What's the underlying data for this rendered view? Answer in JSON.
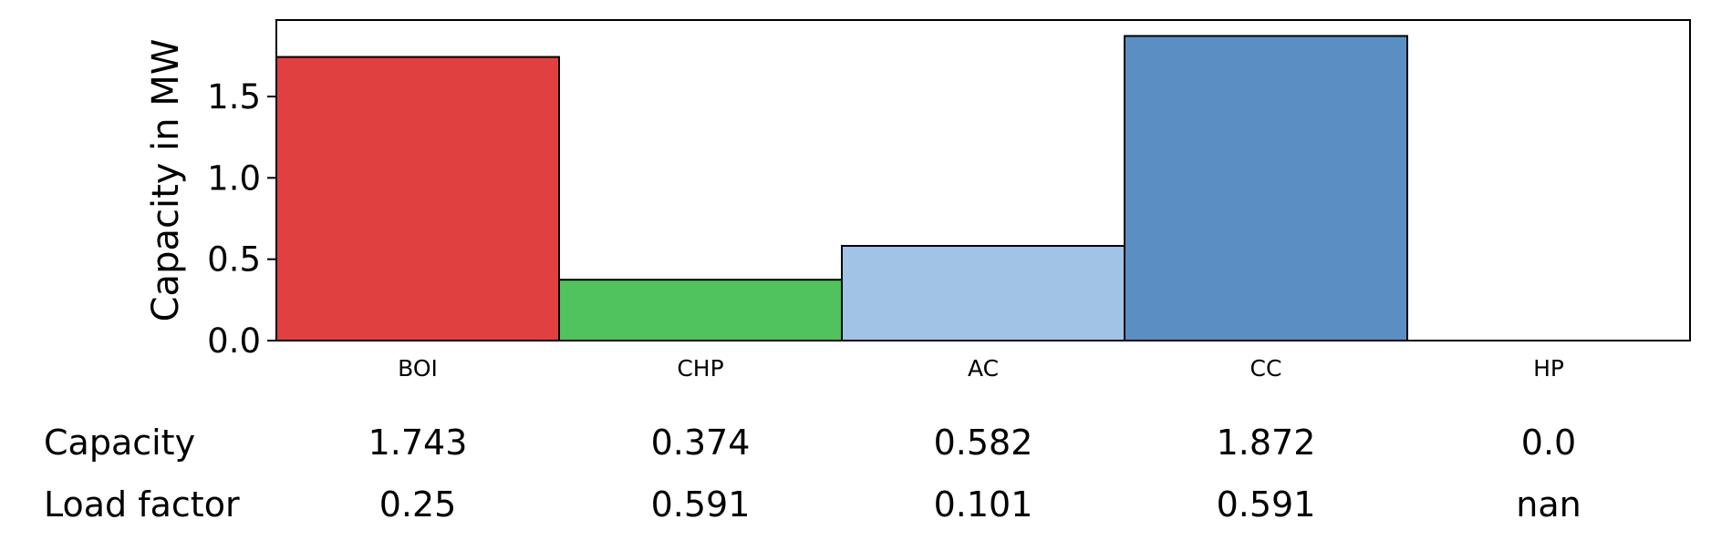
{
  "chart_data": {
    "type": "bar",
    "title": "",
    "xlabel": "",
    "ylabel": "Capacity in MW",
    "categories": [
      "BOI",
      "CHP",
      "AC",
      "CC",
      "HP"
    ],
    "values": [
      1.743,
      0.374,
      0.582,
      1.872,
      0.0
    ],
    "bar_colors": [
      "#e04040",
      "#50c35c",
      "#a1c3e6",
      "#5b8fc3",
      "#ffffff"
    ],
    "ylim": [
      0,
      1.97
    ],
    "yticks": [
      0.0,
      0.5,
      1.0,
      1.5
    ],
    "ytick_labels": [
      "0.0",
      "0.5",
      "1.0",
      "1.5"
    ],
    "grid": false,
    "table": {
      "row_labels": [
        "Capacity",
        "Load factor"
      ],
      "rows": [
        [
          "1.743",
          "0.374",
          "0.582",
          "1.872",
          "0.0"
        ],
        [
          "0.25",
          "0.591",
          "0.101",
          "0.591",
          "nan"
        ]
      ]
    }
  }
}
